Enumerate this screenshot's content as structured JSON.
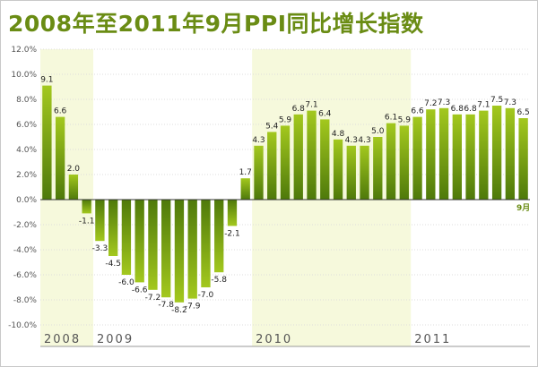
{
  "title": "2008年至2011年9月PPI同比增长指数",
  "chart_data": {
    "type": "bar",
    "title": "2008年至2011年9月PPI同比增长指数",
    "ylim": [
      -10,
      12
    ],
    "yticks": [
      "12.0%",
      "10.0%",
      "8.0%",
      "6.0%",
      "4.0%",
      "2.0%",
      "0.0%",
      "-2.0%",
      "-4.0%",
      "-6.0%",
      "-8.0%",
      "-10.0%"
    ],
    "ytick_values": [
      12,
      10,
      8,
      6,
      4,
      2,
      0,
      -2,
      -4,
      -6,
      -8,
      -10
    ],
    "years": [
      {
        "label": "2008",
        "start": 0,
        "count": 4
      },
      {
        "label": "2009",
        "start": 4,
        "count": 12
      },
      {
        "label": "2010",
        "start": 16,
        "count": 12
      },
      {
        "label": "2011",
        "start": 28,
        "count": 9
      }
    ],
    "last_month_label": "9月",
    "values": [
      9.1,
      6.6,
      2.0,
      -1.1,
      -3.3,
      -4.5,
      -6.0,
      -6.6,
      -7.2,
      -7.8,
      -8.2,
      -7.9,
      -7.0,
      -5.8,
      -2.1,
      1.7,
      4.3,
      5.4,
      5.9,
      6.8,
      7.1,
      6.4,
      4.8,
      4.3,
      4.3,
      5.0,
      6.1,
      5.9,
      6.6,
      7.2,
      7.3,
      6.8,
      6.8,
      7.1,
      7.5,
      7.3,
      6.5
    ],
    "labels": [
      "9.1",
      "6.6",
      "2.0",
      "-1.1",
      "-3.3",
      "-4.5",
      "-6.0",
      "-6.6",
      "-7.2",
      "-7.8",
      "-8.2",
      "-7.9",
      "-7.0",
      "-5.8",
      "-2.1",
      "1.7",
      "4.3",
      "5.4",
      "5.9",
      "6.8",
      "7.1",
      "6.4",
      "4.8",
      "4.3",
      "4.3",
      "5.0",
      "6.1",
      "5.9",
      "6.6",
      "7.2",
      "7.3",
      "6.8",
      "6.8",
      "7.1",
      "7.5",
      "7.3",
      "6.5"
    ],
    "grid": true,
    "colors": {
      "bar_top": "#9cc21a",
      "bar_bottom": "#4f7a0a",
      "band": "#f6f9dc",
      "title": "#6a8c14"
    }
  }
}
